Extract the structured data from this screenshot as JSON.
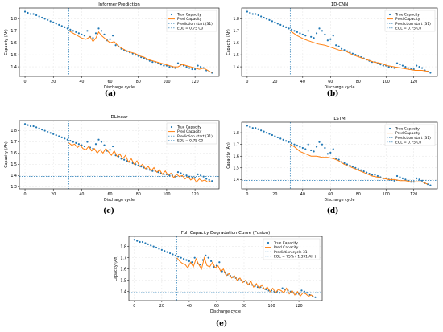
{
  "colors": {
    "true_capacity": "#1f77b4",
    "pred_capacity": "#ff7f0e",
    "prediction_start": "#1f77b4",
    "eol": "#1f77b4",
    "grid": "#e5e5e5",
    "axis": "#000000"
  },
  "true_capacity": {
    "x": [
      0,
      2,
      4,
      6,
      8,
      10,
      12,
      14,
      16,
      18,
      20,
      22,
      24,
      26,
      28,
      30,
      32,
      34,
      36,
      38,
      40,
      42,
      44,
      46,
      48,
      50,
      52,
      54,
      56,
      58,
      60,
      62,
      64,
      66,
      68,
      70,
      72,
      74,
      76,
      78,
      80,
      82,
      84,
      86,
      88,
      90,
      92,
      94,
      96,
      98,
      100,
      102,
      104,
      106,
      108,
      110,
      112,
      114,
      116,
      118,
      120,
      122,
      124,
      126,
      128,
      130,
      132
    ],
    "y": [
      1.86,
      1.85,
      1.84,
      1.84,
      1.83,
      1.82,
      1.81,
      1.8,
      1.79,
      1.78,
      1.77,
      1.76,
      1.75,
      1.74,
      1.73,
      1.72,
      1.71,
      1.7,
      1.69,
      1.68,
      1.67,
      1.66,
      1.7,
      1.65,
      1.64,
      1.68,
      1.72,
      1.7,
      1.67,
      1.62,
      1.63,
      1.66,
      1.58,
      1.57,
      1.55,
      1.54,
      1.53,
      1.52,
      1.51,
      1.5,
      1.49,
      1.48,
      1.47,
      1.46,
      1.45,
      1.44,
      1.44,
      1.43,
      1.42,
      1.41,
      1.41,
      1.4,
      1.4,
      1.39,
      1.43,
      1.42,
      1.41,
      1.4,
      1.39,
      1.38,
      1.38,
      1.41,
      1.4,
      1.39,
      1.37,
      1.36,
      1.35
    ]
  },
  "chart_data": [
    {
      "caption": "(a)",
      "type": "line",
      "title": "Informer Prediction",
      "xlabel": "Discharge cycle",
      "ylabel": "Capacity (Ah)",
      "xlim": [
        -4,
        137
      ],
      "ylim": [
        1.32,
        1.89
      ],
      "xticks": [
        0,
        20,
        40,
        60,
        80,
        100,
        120
      ],
      "yticks": [
        1.4,
        1.5,
        1.6,
        1.7,
        1.8
      ],
      "yticks_text": [
        "1.4",
        "1.5",
        "1.6",
        "1.7",
        "1.8"
      ],
      "prediction_start": 31,
      "eol": 1.391,
      "legend_position": "top-right",
      "legend": [
        "True Capacity",
        "Pred Capacity",
        "Prediction start (31)",
        "EOL = 0.75 C0"
      ],
      "pred": {
        "x": [
          31,
          34,
          37,
          40,
          43,
          46,
          48,
          50,
          52,
          54,
          57,
          60,
          63,
          66,
          69,
          72,
          75,
          78,
          81,
          84,
          87,
          90,
          93,
          96,
          99,
          102,
          105,
          108,
          111,
          114,
          117,
          120,
          123,
          126,
          129,
          132
        ],
        "y": [
          1.7,
          1.68,
          1.66,
          1.64,
          1.63,
          1.65,
          1.61,
          1.64,
          1.69,
          1.66,
          1.63,
          1.6,
          1.61,
          1.57,
          1.55,
          1.53,
          1.52,
          1.51,
          1.49,
          1.48,
          1.46,
          1.45,
          1.44,
          1.43,
          1.42,
          1.41,
          1.4,
          1.4,
          1.42,
          1.41,
          1.4,
          1.39,
          1.38,
          1.39,
          1.37,
          1.35
        ]
      }
    },
    {
      "caption": "(b)",
      "type": "line",
      "title": "1D-CNN",
      "xlabel": "Discharge cycle",
      "ylabel": "Capacity (Ah)",
      "xlim": [
        -4,
        137
      ],
      "ylim": [
        1.32,
        1.89
      ],
      "xticks": [
        0,
        20,
        40,
        60,
        80,
        100,
        120
      ],
      "yticks": [
        1.4,
        1.5,
        1.6,
        1.7,
        1.8
      ],
      "yticks_text": [
        "1.4",
        "1.5",
        "1.6",
        "1.7",
        "1.8"
      ],
      "prediction_start": 31,
      "eol": 1.391,
      "legend_position": "top-right",
      "legend": [
        "True Capacity",
        "Pred Capacity",
        "Prediction start (31)",
        "EOL = 0.75 C0"
      ],
      "pred": {
        "x": [
          31,
          36,
          41,
          46,
          51,
          56,
          61,
          66,
          71,
          76,
          81,
          86,
          91,
          96,
          101,
          106,
          111,
          116,
          121,
          126,
          131
        ],
        "y": [
          1.7,
          1.66,
          1.63,
          1.61,
          1.59,
          1.58,
          1.56,
          1.54,
          1.53,
          1.5,
          1.48,
          1.46,
          1.44,
          1.43,
          1.41,
          1.4,
          1.39,
          1.38,
          1.37,
          1.37,
          1.36
        ]
      }
    },
    {
      "caption": "(c)",
      "type": "line",
      "title": "DLinear",
      "xlabel": "Discharge cycle",
      "ylabel": "Capacity (Ah)",
      "xlim": [
        -4,
        137
      ],
      "ylim": [
        1.28,
        1.89
      ],
      "xticks": [
        0,
        20,
        40,
        60,
        80,
        100,
        120
      ],
      "yticks": [
        1.3,
        1.4,
        1.5,
        1.6,
        1.7,
        1.8
      ],
      "yticks_text": [
        "1.3",
        "1.4",
        "1.5",
        "1.6",
        "1.7",
        "1.8"
      ],
      "prediction_start": 31,
      "eol": 1.391,
      "legend_position": "top-right",
      "legend": [
        "True Capacity",
        "Pred Capacity",
        "Prediction start (31)",
        "EOL = 0.75 C0"
      ],
      "pred": {
        "x": [
          31,
          33,
          35,
          37,
          39,
          41,
          43,
          45,
          47,
          49,
          51,
          53,
          55,
          57,
          59,
          61,
          63,
          65,
          67,
          69,
          71,
          73,
          75,
          77,
          79,
          81,
          83,
          85,
          87,
          89,
          91,
          93,
          95,
          97,
          99,
          101,
          103,
          105,
          107,
          109,
          111,
          113,
          115,
          117,
          119,
          121,
          123,
          125,
          127,
          129,
          131
        ],
        "y": [
          1.69,
          1.67,
          1.68,
          1.65,
          1.67,
          1.64,
          1.63,
          1.66,
          1.62,
          1.64,
          1.6,
          1.63,
          1.6,
          1.64,
          1.61,
          1.58,
          1.62,
          1.57,
          1.59,
          1.55,
          1.58,
          1.52,
          1.55,
          1.5,
          1.53,
          1.48,
          1.5,
          1.46,
          1.48,
          1.44,
          1.47,
          1.43,
          1.45,
          1.41,
          1.44,
          1.4,
          1.42,
          1.38,
          1.41,
          1.39,
          1.4,
          1.37,
          1.39,
          1.36,
          1.38,
          1.34,
          1.37,
          1.35,
          1.36,
          1.34,
          1.35
        ]
      }
    },
    {
      "caption": "(d)",
      "type": "line",
      "title": "LSTM",
      "xlabel": "Discharge cycle",
      "ylabel": "Capacity (Ah)",
      "xlim": [
        -4,
        137
      ],
      "ylim": [
        1.32,
        1.89
      ],
      "xticks": [
        0,
        20,
        40,
        60,
        80,
        100,
        120
      ],
      "yticks": [
        1.4,
        1.5,
        1.6,
        1.7,
        1.8
      ],
      "yticks_text": [
        "1.4",
        "1.5",
        "1.6",
        "1.7",
        "1.8"
      ],
      "prediction_start": 31,
      "eol": 1.391,
      "legend_position": "top-right",
      "legend": [
        "True Capacity",
        "Pred Capacity",
        "Prediction start (31)",
        "EOL = 0.75 C0"
      ],
      "pred": {
        "x": [
          31,
          34,
          38,
          42,
          46,
          50,
          54,
          58,
          62,
          66,
          70,
          74,
          78,
          82,
          86,
          90,
          94,
          98,
          102,
          106,
          110,
          114,
          118,
          122,
          126,
          130
        ],
        "y": [
          1.7,
          1.68,
          1.64,
          1.62,
          1.6,
          1.6,
          1.59,
          1.59,
          1.58,
          1.56,
          1.53,
          1.51,
          1.49,
          1.47,
          1.45,
          1.43,
          1.42,
          1.41,
          1.4,
          1.4,
          1.39,
          1.39,
          1.38,
          1.38,
          1.38,
          1.36
        ]
      }
    },
    {
      "caption": "(e)",
      "type": "line",
      "title": "Full Capacity Degradation Curve (Fusion)",
      "xlabel": "Discharge cycle",
      "ylabel": "Capacity (Ah)",
      "xlim": [
        -4,
        137
      ],
      "ylim": [
        1.32,
        1.89
      ],
      "xticks": [
        0,
        20,
        40,
        60,
        80,
        100,
        120
      ],
      "yticks": [
        1.4,
        1.5,
        1.6,
        1.7,
        1.8
      ],
      "yticks_text": [
        "1.4",
        "1.5",
        "1.6",
        "1.7",
        "1.8"
      ],
      "prediction_start": 31,
      "eol": 1.391,
      "legend_position": "top-right",
      "legend": [
        "True Capacity",
        "Pred Capacity",
        "Prediction cycle 31",
        "EOL = 75% ( 1.391 Ah )"
      ],
      "pred": {
        "x": [
          31,
          33,
          35,
          37,
          39,
          41,
          43,
          45,
          47,
          49,
          51,
          53,
          55,
          57,
          59,
          61,
          63,
          65,
          67,
          69,
          71,
          73,
          75,
          77,
          79,
          81,
          83,
          85,
          87,
          89,
          91,
          93,
          95,
          97,
          99,
          101,
          103,
          105,
          107,
          109,
          111,
          113,
          115,
          117,
          119,
          121,
          123,
          125,
          127,
          129,
          131
        ],
        "y": [
          1.7,
          1.67,
          1.65,
          1.64,
          1.61,
          1.66,
          1.62,
          1.69,
          1.64,
          1.6,
          1.7,
          1.63,
          1.62,
          1.66,
          1.61,
          1.63,
          1.58,
          1.6,
          1.54,
          1.56,
          1.52,
          1.54,
          1.5,
          1.52,
          1.48,
          1.5,
          1.46,
          1.49,
          1.44,
          1.47,
          1.43,
          1.46,
          1.42,
          1.44,
          1.4,
          1.43,
          1.39,
          1.42,
          1.41,
          1.39,
          1.43,
          1.38,
          1.41,
          1.37,
          1.4,
          1.36,
          1.39,
          1.38,
          1.36,
          1.37,
          1.35
        ]
      }
    }
  ]
}
